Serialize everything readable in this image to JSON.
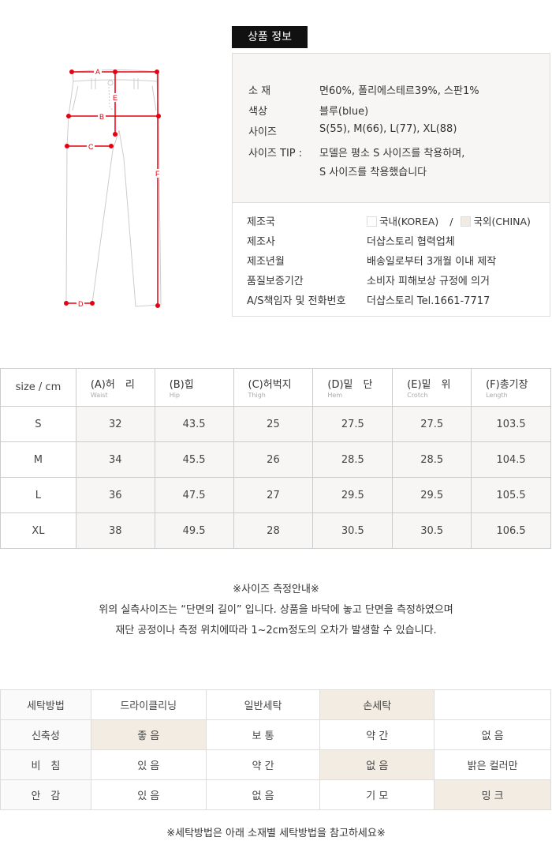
{
  "product_info": {
    "badge": "상품 정보",
    "details": [
      {
        "label": "소 재",
        "value": "면60%, 폴리에스테르39%, 스판1%"
      },
      {
        "label": "색상",
        "value": "블루(blue)"
      },
      {
        "label": "사이즈",
        "value": "S(55), M(66), L(77), XL(88)"
      },
      {
        "label": "사이즈 TIP :",
        "value": "모델은 평소 S 사이즈를 착용하며,",
        "value2": "S 사이즈를 착용했습니다"
      }
    ],
    "origin": {
      "label": "제조국",
      "korea": "국내(KOREA)",
      "sep": "/",
      "china": "국외(CHINA)",
      "selected": "CHINA"
    },
    "maker": [
      {
        "label": "제조사",
        "value": "더샵스토리 협력업체"
      },
      {
        "label": "제조년월",
        "value": "배송일로부터 3개월 이내 제작"
      },
      {
        "label": "품질보증기간",
        "value": "소비자 피해보상 규정에 의거"
      },
      {
        "label": "A/S책임자 및 전화번호",
        "value": "더샵스토리 Tel.1661-7717"
      }
    ]
  },
  "diagram": {
    "labels": [
      "A",
      "B",
      "C",
      "D",
      "E",
      "F"
    ],
    "marker_color": "#e60012"
  },
  "size_table": {
    "corner": "size / cm",
    "headers": [
      {
        "kr": "(A)허　리",
        "en": "Waist"
      },
      {
        "kr": "(B)힙",
        "en": "Hip"
      },
      {
        "kr": "(C)허벅지",
        "en": "Thigh"
      },
      {
        "kr": "(D)밑　단",
        "en": "Hem"
      },
      {
        "kr": "(E)밑　위",
        "en": "Crotch"
      },
      {
        "kr": "(F)총기장",
        "en": "Length"
      }
    ],
    "rows": [
      {
        "size": "S",
        "values": [
          "32",
          "43.5",
          "25",
          "27.5",
          "27.5",
          "103.5"
        ]
      },
      {
        "size": "M",
        "values": [
          "34",
          "45.5",
          "26",
          "28.5",
          "28.5",
          "104.5"
        ]
      },
      {
        "size": "L",
        "values": [
          "36",
          "47.5",
          "27",
          "29.5",
          "29.5",
          "105.5"
        ]
      },
      {
        "size": "XL",
        "values": [
          "38",
          "49.5",
          "28",
          "30.5",
          "30.5",
          "106.5"
        ]
      }
    ]
  },
  "notes": {
    "title": "※사이즈 측정안내※",
    "line1": "위의 실측사이즈는 “단면의 길이” 입니다. 상품을 바닥에 놓고 단면을 측정하였으며",
    "line2": "재단 공정이나 측정 위치에따라 1~2cm정도의 오차가 발생할 수 있습니다."
  },
  "care_table": {
    "highlight_color": "#f3ece2",
    "rows": [
      {
        "label": "세탁방법",
        "cells": [
          "드라이클리닝",
          "일반세탁",
          "손세탁",
          ""
        ],
        "selected": 2
      },
      {
        "label": "신축성",
        "cells": [
          "좋 음",
          "보 통",
          "약 간",
          "없 음"
        ],
        "selected": 0
      },
      {
        "label": "비　침",
        "cells": [
          "있 음",
          "약 간",
          "없 음",
          "밝은 컬러만"
        ],
        "selected": 2
      },
      {
        "label": "안　감",
        "cells": [
          "있 음",
          "없 음",
          "기 모",
          "밍 크"
        ],
        "selected": 3
      }
    ],
    "footer": "※세탁방법은 아래 소재별 세탁방법을 참고하세요※"
  }
}
